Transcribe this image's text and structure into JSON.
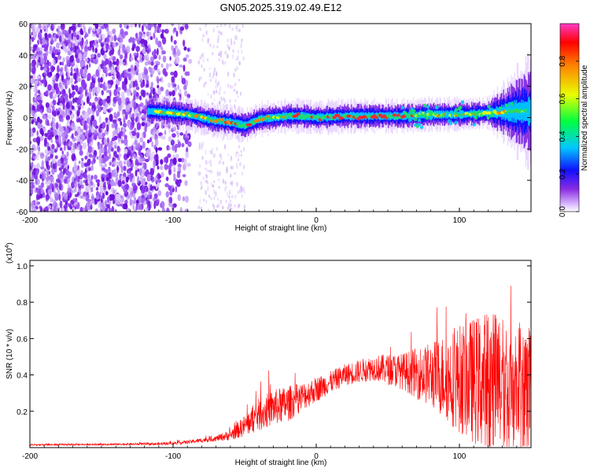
{
  "title": "GN05.2025.319.02.49.E12",
  "colors": {
    "trace": "#ff0000",
    "axis": "#000000",
    "noise": "#7a1fe0",
    "ridge_core": "#ff2020"
  },
  "chart_data": [
    {
      "type": "heatmap",
      "title": "GN05.2025.319.02.49.E12",
      "xlabel": "Height of straight line (km)",
      "ylabel": "Frequency (Hz)",
      "xlim": [
        -200,
        150
      ],
      "ylim": [
        -60,
        60
      ],
      "x_ticks": [
        -200,
        -100,
        0,
        100
      ],
      "x_tick_labels": [
        "-200",
        "-100",
        "0",
        "100"
      ],
      "y_ticks": [
        -60,
        -40,
        -20,
        0,
        20,
        40,
        60
      ],
      "y_tick_labels": [
        "-60",
        "-40",
        "-20",
        "0",
        "20",
        "40",
        "60"
      ],
      "colorbar": {
        "label": "Normalized spectral amplitude",
        "range": [
          0,
          1
        ],
        "ticks": [
          "0.0",
          "0.2",
          "0.4",
          "0.6",
          "0.8"
        ]
      },
      "ridge": {
        "description_values_x_km": [
          -115,
          -100,
          -90,
          -80,
          -70,
          -60,
          -50,
          -45,
          -40,
          -30,
          -20,
          -10,
          0,
          20,
          40,
          60,
          80,
          100,
          120,
          140
        ],
        "frequency_hz": [
          4,
          3,
          2,
          0,
          -2,
          -3,
          -5,
          -3,
          -1,
          0,
          1,
          1,
          0,
          1,
          1,
          1,
          2,
          2,
          3,
          4
        ]
      }
    },
    {
      "type": "line",
      "xlabel": "Height of straight line (km)",
      "ylabel": "SNR (10 * v/v)",
      "y_multiplier_label": "(x10",
      "y_multiplier_exp": "4",
      "y_multiplier_close": ")",
      "xlim": [
        -200,
        150
      ],
      "ylim": [
        0,
        1.03
      ],
      "x_ticks": [
        -200,
        -100,
        0,
        100
      ],
      "x_tick_labels": [
        "-200",
        "-100",
        "0",
        "100"
      ],
      "y_ticks": [
        0.2,
        0.4,
        0.6,
        0.8,
        1.0
      ],
      "y_tick_labels": [
        "0.2",
        "0.4",
        "0.6",
        "0.8",
        "1.0"
      ],
      "series": [
        {
          "name": "SNR",
          "envelope_x": [
            -200,
            -150,
            -110,
            -90,
            -70,
            -60,
            -50,
            -40,
            -30,
            -20,
            -10,
            0,
            10,
            20,
            40,
            60,
            80,
            100,
            120,
            140,
            150
          ],
          "envelope_mean": [
            0.015,
            0.018,
            0.02,
            0.03,
            0.05,
            0.07,
            0.12,
            0.18,
            0.22,
            0.24,
            0.28,
            0.32,
            0.36,
            0.4,
            0.44,
            0.42,
            0.4,
            0.38,
            0.36,
            0.34,
            0.33
          ],
          "envelope_spread": [
            0.005,
            0.005,
            0.008,
            0.01,
            0.015,
            0.03,
            0.06,
            0.09,
            0.1,
            0.1,
            0.08,
            0.07,
            0.06,
            0.06,
            0.07,
            0.1,
            0.18,
            0.3,
            0.4,
            0.4,
            0.35
          ]
        }
      ]
    }
  ]
}
